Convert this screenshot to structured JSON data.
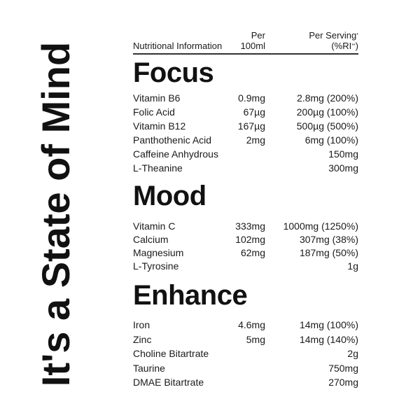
{
  "title": "It's a State of Mind",
  "header": {
    "label": "Nutritional Information",
    "col1_line1": "Per",
    "col1_line2": "100ml",
    "col2_line1": "Per Serving",
    "col2_line1_mark": "*",
    "col2_line2_open": "(%RI",
    "col2_line2_mark": "**",
    "col2_line2_close": ")"
  },
  "sections": [
    {
      "title": "Focus",
      "rows": [
        {
          "name": "Vitamin B6",
          "per100": "0.9mg",
          "serving": "2.8mg (200%)"
        },
        {
          "name": "Folic Acid",
          "per100": "67µg",
          "serving": "200µg (100%)"
        },
        {
          "name": "Vitamin B12",
          "per100": "167µg",
          "serving": "500µg (500%)"
        },
        {
          "name": "Panthothenic Acid",
          "per100": "2mg",
          "serving": "6mg (100%)"
        },
        {
          "name": "Caffeine Anhydrous",
          "per100": "",
          "serving": "150mg"
        },
        {
          "name": "L-Theanine",
          "per100": "",
          "serving": "300mg"
        }
      ]
    },
    {
      "title": "Mood",
      "rows": [
        {
          "name": "Vitamin C",
          "per100": "333mg",
          "serving": "1000mg (1250%)"
        },
        {
          "name": "Calcium",
          "per100": "102mg",
          "serving": "307mg (38%)"
        },
        {
          "name": "Magnesium",
          "per100": "62mg",
          "serving": "187mg (50%)"
        },
        {
          "name": "L-Tyrosine",
          "per100": "",
          "serving": "1g"
        }
      ]
    },
    {
      "title": "Enhance",
      "rows": [
        {
          "name": "Iron",
          "per100": "4.6mg",
          "serving": "14mg (100%)"
        },
        {
          "name": "Zinc",
          "per100": "5mg",
          "serving": "14mg (140%)"
        },
        {
          "name": "Choline Bitartrate",
          "per100": "",
          "serving": "2g"
        },
        {
          "name": "Taurine",
          "per100": "",
          "serving": "750mg"
        },
        {
          "name": "DMAE Bitartrate",
          "per100": "",
          "serving": "270mg"
        }
      ]
    }
  ]
}
